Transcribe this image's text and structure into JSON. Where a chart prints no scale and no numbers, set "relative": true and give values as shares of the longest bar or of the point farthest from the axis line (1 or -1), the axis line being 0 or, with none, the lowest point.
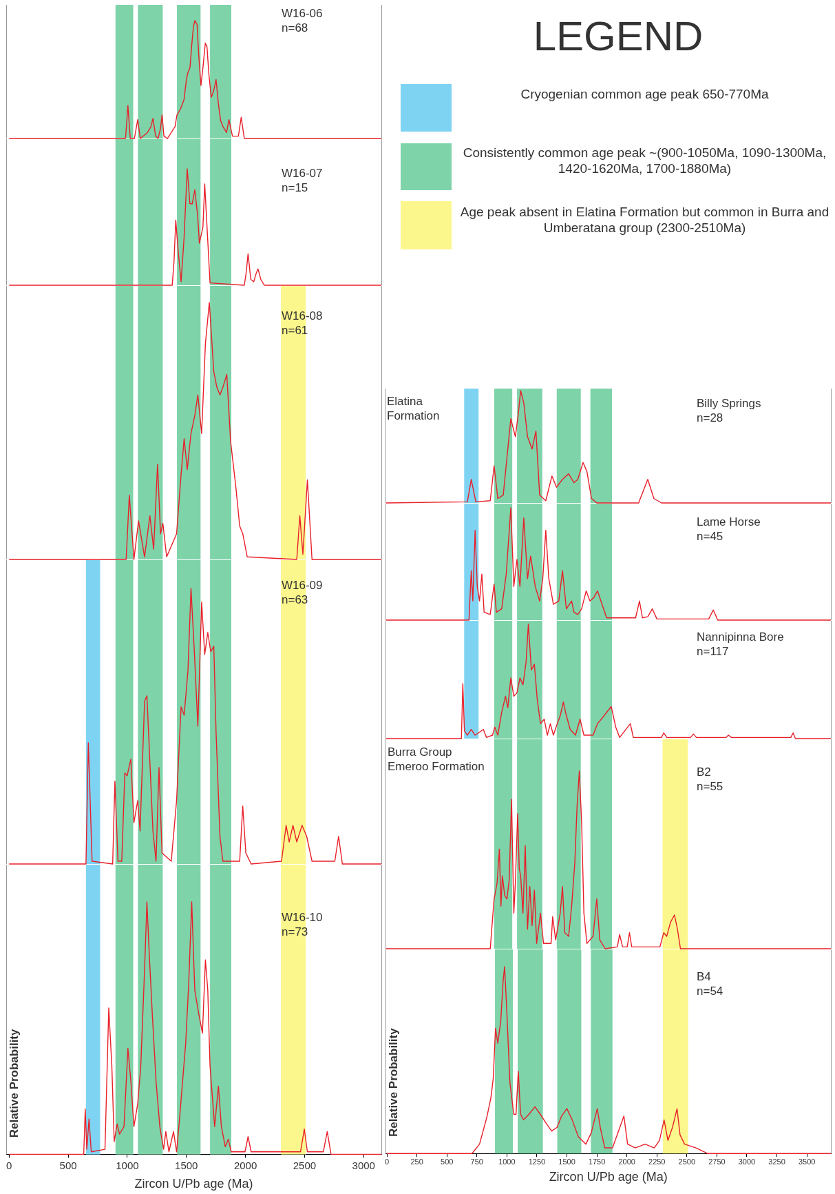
{
  "chart_data": [
    {
      "type": "line",
      "title": "W16-06",
      "subtitle": "n=68",
      "relative": true,
      "color": "#e8202a",
      "xlim": [
        -25,
        3150
      ],
      "tick_labels": false,
      "x": [
        0,
        950,
        985,
        1005,
        1025,
        1060,
        1088,
        1110,
        1170,
        1200,
        1217,
        1240,
        1260,
        1280,
        1294,
        1310,
        1340,
        1390,
        1404,
        1420,
        1450,
        1480,
        1500,
        1513,
        1530,
        1545,
        1560,
        1571,
        1590,
        1605,
        1623,
        1640,
        1660,
        1674,
        1690,
        1710,
        1730,
        1751,
        1770,
        1790,
        1810,
        1840,
        1860,
        1890,
        1940,
        1964,
        1990,
        3150
      ],
      "values": [
        0,
        0,
        0,
        0.28,
        0,
        0,
        0.16,
        0,
        0.05,
        0.1,
        0.17,
        0.02,
        0,
        0.08,
        0.2,
        0.02,
        0,
        0.08,
        0.1,
        0.2,
        0.25,
        0.33,
        0.5,
        0.56,
        0.6,
        0.79,
        0.95,
        1.0,
        0.97,
        0.7,
        0.45,
        0.6,
        0.81,
        0.78,
        0.55,
        0.35,
        0.4,
        0.5,
        0.3,
        0.15,
        0.1,
        0.05,
        0.16,
        0.02,
        0.02,
        0.18,
        0,
        0
      ],
      "bands": [
        {
          "axis": "x",
          "from": 900,
          "to": 1050,
          "color": "#7ed3a9"
        },
        {
          "axis": "x",
          "from": 1090,
          "to": 1300,
          "color": "#7ed3a9"
        },
        {
          "axis": "x",
          "from": 1420,
          "to": 1620,
          "color": "#7ed3a9"
        },
        {
          "axis": "x",
          "from": 1700,
          "to": 1880,
          "color": "#7ed3a9"
        }
      ]
    },
    {
      "type": "line",
      "title": "W16-07",
      "subtitle": "n=15",
      "relative": true,
      "color": "#e8202a",
      "xlim": [
        -25,
        3150
      ],
      "tick_labels": false,
      "x": [
        0,
        1380,
        1395,
        1410,
        1430,
        1455,
        1480,
        1507,
        1530,
        1550,
        1571,
        1595,
        1610,
        1640,
        1655,
        1680,
        1700,
        1990,
        2005,
        2022,
        2045,
        2070,
        2090,
        2106,
        2130,
        2160,
        3150
      ],
      "values": [
        0,
        0,
        0.2,
        0.56,
        0.3,
        0.03,
        0.4,
        1.0,
        0.7,
        0.7,
        0.82,
        0.6,
        0.36,
        0.5,
        0.87,
        0.4,
        0.02,
        0,
        0.1,
        0.27,
        0.05,
        0.03,
        0.1,
        0.14,
        0.05,
        0,
        0
      ],
      "bands": [
        {
          "axis": "x",
          "from": 900,
          "to": 1050,
          "color": "#7ed3a9"
        },
        {
          "axis": "x",
          "from": 1090,
          "to": 1300,
          "color": "#7ed3a9"
        },
        {
          "axis": "x",
          "from": 1420,
          "to": 1620,
          "color": "#7ed3a9"
        },
        {
          "axis": "x",
          "from": 1700,
          "to": 1880,
          "color": "#7ed3a9"
        }
      ]
    },
    {
      "type": "line",
      "title": "W16-08",
      "subtitle": "n=61",
      "relative": true,
      "color": "#e8202a",
      "xlim": [
        -25,
        3150
      ],
      "tick_labels": false,
      "x": [
        0,
        990,
        1017,
        1056,
        1095,
        1146,
        1191,
        1223,
        1256,
        1281,
        1301,
        1333,
        1417,
        1455,
        1481,
        1507,
        1539,
        1571,
        1597,
        1629,
        1661,
        1694,
        1732,
        1758,
        1784,
        1809,
        1842,
        1874,
        1919,
        1951,
        1977,
        2015,
        2434,
        2460,
        2486,
        2524,
        2563,
        3150
      ],
      "values": [
        0,
        0,
        0.25,
        0,
        0.15,
        0.01,
        0.17,
        0.04,
        0.37,
        0.1,
        0.14,
        0.01,
        0.1,
        0.33,
        0.47,
        0.35,
        0.49,
        0.56,
        0.64,
        0.49,
        0.84,
        1.0,
        0.73,
        0.67,
        0.64,
        0.67,
        0.72,
        0.46,
        0.28,
        0.13,
        0.1,
        0.01,
        0,
        0.17,
        0.02,
        0.31,
        0,
        0
      ],
      "bands": [
        {
          "axis": "x",
          "from": 900,
          "to": 1050,
          "color": "#7ed3a9"
        },
        {
          "axis": "x",
          "from": 1090,
          "to": 1300,
          "color": "#7ed3a9"
        },
        {
          "axis": "x",
          "from": 1420,
          "to": 1620,
          "color": "#7ed3a9"
        },
        {
          "axis": "x",
          "from": 1700,
          "to": 1880,
          "color": "#7ed3a9"
        },
        {
          "axis": "x",
          "from": 2300,
          "to": 2510,
          "color": "#fbf78c"
        }
      ]
    },
    {
      "type": "line",
      "title": "W16-09",
      "subtitle": "n=63",
      "relative": true,
      "color": "#e8202a",
      "xlim": [
        -25,
        3150
      ],
      "tick_labels": false,
      "x": [
        0,
        650,
        670,
        702,
        876,
        895,
        921,
        953,
        979,
        998,
        1030,
        1056,
        1088,
        1108,
        1146,
        1166,
        1191,
        1217,
        1243,
        1268,
        1294,
        1372,
        1417,
        1455,
        1481,
        1513,
        1539,
        1565,
        1597,
        1629,
        1655,
        1681,
        1706,
        1732,
        1751,
        1784,
        1809,
        1951,
        1977,
        2003,
        2048,
        2305,
        2344,
        2370,
        2402,
        2434,
        2479,
        2518,
        2563,
        2756,
        2788,
        2820,
        3150
      ],
      "values": [
        0,
        0,
        0.44,
        0.01,
        0,
        0.3,
        0.01,
        0.01,
        0.33,
        0.32,
        0.38,
        0.15,
        0.23,
        0.12,
        0.59,
        0.61,
        0.37,
        0.12,
        0.01,
        0.35,
        0.04,
        0.01,
        0.23,
        0.57,
        0.54,
        0.7,
        1.0,
        0.79,
        0.5,
        0.95,
        0.76,
        0.84,
        0.77,
        0.79,
        0.48,
        0.1,
        0.01,
        0.01,
        0.21,
        0.04,
        0,
        0.01,
        0.14,
        0.08,
        0.14,
        0.08,
        0.14,
        0.1,
        0.01,
        0.01,
        0.1,
        0,
        0
      ],
      "bands": [
        {
          "axis": "x",
          "from": 650,
          "to": 770,
          "color": "#7fd3f2"
        },
        {
          "axis": "x",
          "from": 900,
          "to": 1050,
          "color": "#7ed3a9"
        },
        {
          "axis": "x",
          "from": 1090,
          "to": 1300,
          "color": "#7ed3a9"
        },
        {
          "axis": "x",
          "from": 1420,
          "to": 1620,
          "color": "#7ed3a9"
        },
        {
          "axis": "x",
          "from": 1700,
          "to": 1880,
          "color": "#7ed3a9"
        },
        {
          "axis": "x",
          "from": 2300,
          "to": 2510,
          "color": "#fbf78c"
        }
      ]
    },
    {
      "type": "line",
      "title": "W16-10",
      "subtitle": "n=73",
      "relative": true,
      "color": "#e8202a",
      "xlim": [
        -25,
        3150
      ],
      "tick_labels": "x",
      "xlabel": "Zircon U/Pb age (Ma)",
      "ylabel": "Relative Probability",
      "xticks": [
        0,
        500,
        1000,
        1500,
        2000,
        2500,
        3000
      ],
      "x": [
        0,
        631,
        644,
        657,
        676,
        695,
        811,
        843,
        869,
        889,
        914,
        934,
        972,
        1005,
        1030,
        1056,
        1088,
        1114,
        1146,
        1166,
        1185,
        1211,
        1243,
        1275,
        1307,
        1326,
        1352,
        1391,
        1417,
        1442,
        1468,
        1494,
        1520,
        1545,
        1571,
        1603,
        1636,
        1661,
        1681,
        1700,
        1739,
        1771,
        1796,
        1829,
        1854,
        1880,
        1996,
        2022,
        2048,
        2466,
        2498,
        2524,
        2659,
        2692,
        2724,
        3150
      ],
      "values": [
        0,
        0,
        0.18,
        0.02,
        0.14,
        0.01,
        0.02,
        0.58,
        0.35,
        0.05,
        0.12,
        0.08,
        0.11,
        0.42,
        0.29,
        0.11,
        0.2,
        0.35,
        0.73,
        1.0,
        0.8,
        0.56,
        0.29,
        0.11,
        0.02,
        0.09,
        0.01,
        0.09,
        0.01,
        0.14,
        0.29,
        0.44,
        0.68,
        1.0,
        0.65,
        0.56,
        0.48,
        0.77,
        0.65,
        0.35,
        0.11,
        0.27,
        0.11,
        0.03,
        0.06,
        0.01,
        0.01,
        0.07,
        0.01,
        0.01,
        0.1,
        0.01,
        0.01,
        0.09,
        0,
        0
      ],
      "bands": [
        {
          "axis": "x",
          "from": 650,
          "to": 770,
          "color": "#7fd3f2"
        },
        {
          "axis": "x",
          "from": 900,
          "to": 1050,
          "color": "#7ed3a9"
        },
        {
          "axis": "x",
          "from": 1090,
          "to": 1300,
          "color": "#7ed3a9"
        },
        {
          "axis": "x",
          "from": 1420,
          "to": 1620,
          "color": "#7ed3a9"
        },
        {
          "axis": "x",
          "from": 1700,
          "to": 1880,
          "color": "#7ed3a9"
        },
        {
          "axis": "x",
          "from": 2300,
          "to": 2510,
          "color": "#fbf78c"
        }
      ]
    },
    {
      "type": "line",
      "title": "Billy Springs",
      "subtitle": "n=28",
      "annotations": [
        "Elatina Formation"
      ],
      "relative": true,
      "color": "#e8202a",
      "xlim": [
        -10,
        3700
      ],
      "tick_labels": false,
      "x": [
        0,
        677,
        709,
        747,
        867,
        899,
        930,
        975,
        1013,
        1038,
        1076,
        1101,
        1120,
        1146,
        1177,
        1215,
        1247,
        1278,
        1329,
        1380,
        1418,
        1468,
        1519,
        1563,
        1595,
        1639,
        1671,
        1709,
        1753,
        2101,
        2177,
        2228,
        2291,
        3700
      ],
      "values": [
        0,
        0.01,
        0.21,
        0.01,
        0.02,
        0.33,
        0.04,
        0.07,
        0.48,
        0.75,
        0.59,
        0.8,
        1.0,
        0.89,
        0.59,
        0.48,
        0.64,
        0.07,
        0.02,
        0.24,
        0.14,
        0.21,
        0.26,
        0.18,
        0.21,
        0.36,
        0.28,
        0.04,
        0,
        0,
        0.21,
        0.04,
        0,
        0
      ],
      "bands": [
        {
          "axis": "x",
          "from": 650,
          "to": 770,
          "color": "#7fd3f2"
        },
        {
          "axis": "x",
          "from": 900,
          "to": 1050,
          "color": "#7ed3a9"
        },
        {
          "axis": "x",
          "from": 1090,
          "to": 1300,
          "color": "#7ed3a9"
        },
        {
          "axis": "x",
          "from": 1420,
          "to": 1620,
          "color": "#7ed3a9"
        },
        {
          "axis": "x",
          "from": 1700,
          "to": 1880,
          "color": "#7ed3a9"
        }
      ]
    },
    {
      "type": "line",
      "title": "Lame Horse",
      "subtitle": "n=45",
      "relative": true,
      "color": "#e8202a",
      "xlim": [
        -10,
        3700
      ],
      "tick_labels": false,
      "x": [
        0,
        690,
        709,
        722,
        741,
        759,
        778,
        797,
        816,
        867,
        899,
        918,
        962,
        1000,
        1038,
        1063,
        1089,
        1114,
        1146,
        1177,
        1203,
        1241,
        1278,
        1304,
        1329,
        1354,
        1392,
        1437,
        1468,
        1500,
        1544,
        1563,
        1595,
        1627,
        1665,
        1696,
        1728,
        1759,
        1797,
        1835,
        2076,
        2108,
        2133,
        2177,
        2215,
        2253,
        2684,
        2722,
        2759,
        3700
      ],
      "values": [
        0,
        0,
        0.44,
        0.17,
        0.8,
        0.3,
        0.17,
        0.41,
        0.07,
        0.05,
        0.32,
        0.07,
        0.1,
        0.41,
        1.0,
        0.3,
        0.54,
        0.3,
        0.91,
        0.37,
        0.57,
        0.3,
        0.17,
        0.37,
        0.8,
        0.37,
        0.14,
        0.17,
        0.44,
        0.1,
        0.17,
        0.07,
        0.05,
        0.1,
        0.26,
        0.17,
        0.2,
        0.26,
        0.14,
        0.02,
        0.02,
        0.17,
        0.02,
        0.03,
        0.1,
        0.01,
        0.01,
        0.09,
        0,
        0
      ],
      "bands": [
        {
          "axis": "x",
          "from": 650,
          "to": 770,
          "color": "#7fd3f2"
        },
        {
          "axis": "x",
          "from": 900,
          "to": 1050,
          "color": "#7ed3a9"
        },
        {
          "axis": "x",
          "from": 1090,
          "to": 1300,
          "color": "#7ed3a9"
        },
        {
          "axis": "x",
          "from": 1420,
          "to": 1620,
          "color": "#7ed3a9"
        },
        {
          "axis": "x",
          "from": 1700,
          "to": 1880,
          "color": "#7ed3a9"
        }
      ]
    },
    {
      "type": "line",
      "title": "Nannipinna Bore",
      "subtitle": "n=117",
      "relative": true,
      "color": "#e8202a",
      "xlim": [
        -10,
        3700
      ],
      "tick_labels": false,
      "x": [
        0,
        627,
        639,
        652,
        677,
        709,
        741,
        810,
        835,
        886,
        905,
        930,
        962,
        994,
        1013,
        1038,
        1063,
        1089,
        1114,
        1139,
        1165,
        1184,
        1209,
        1234,
        1259,
        1285,
        1316,
        1342,
        1367,
        1392,
        1424,
        1449,
        1475,
        1500,
        1532,
        1576,
        1614,
        1646,
        1722,
        1759,
        1791,
        1873,
        1911,
        1943,
        2032,
        2057,
        2291,
        2310,
        2335,
        2532,
        2557,
        2582,
        2829,
        2848,
        2873,
        3367,
        3386,
        3405,
        3700
      ],
      "values": [
        0,
        0,
        0.48,
        0.07,
        0.03,
        0.08,
        0.03,
        0.08,
        0.01,
        0.03,
        0.1,
        0.03,
        0.23,
        0.37,
        0.27,
        0.53,
        0.37,
        0.4,
        0.53,
        0.47,
        0.67,
        1.0,
        0.6,
        0.65,
        0.33,
        0.13,
        0.17,
        0.03,
        0.13,
        0.03,
        0.13,
        0.2,
        0.32,
        0.2,
        0.08,
        0.03,
        0.17,
        0.03,
        0.03,
        0.13,
        0.17,
        0.28,
        0.1,
        0.01,
        0.13,
        0.01,
        0.01,
        0.05,
        0.01,
        0.01,
        0.04,
        0.01,
        0.01,
        0.03,
        0.01,
        0.01,
        0.05,
        0,
        0
      ],
      "bands": [
        {
          "axis": "x",
          "from": 650,
          "to": 770,
          "color": "#7fd3f2"
        },
        {
          "axis": "x",
          "from": 900,
          "to": 1050,
          "color": "#7ed3a9"
        },
        {
          "axis": "x",
          "from": 1090,
          "to": 1300,
          "color": "#7ed3a9"
        },
        {
          "axis": "x",
          "from": 1420,
          "to": 1620,
          "color": "#7ed3a9"
        },
        {
          "axis": "x",
          "from": 1700,
          "to": 1880,
          "color": "#7ed3a9"
        }
      ]
    },
    {
      "type": "line",
      "title": "B2",
      "subtitle": "n=55",
      "annotations": [
        "Burra Group Emeroo Formation"
      ],
      "relative": true,
      "color": "#e8202a",
      "xlim": [
        -10,
        3700
      ],
      "tick_labels": false,
      "x": [
        0,
        867,
        899,
        924,
        943,
        956,
        968,
        987,
        1006,
        1025,
        1044,
        1063,
        1076,
        1095,
        1108,
        1120,
        1139,
        1158,
        1177,
        1196,
        1215,
        1234,
        1253,
        1285,
        1310,
        1373,
        1386,
        1411,
        1449,
        1468,
        1487,
        1519,
        1544,
        1570,
        1589,
        1608,
        1627,
        1646,
        1671,
        1722,
        1753,
        1778,
        1823,
        1924,
        1943,
        1968,
        2006,
        2025,
        2044,
        2278,
        2310,
        2335,
        2367,
        2399,
        2424,
        2449,
        3700
      ],
      "values": [
        0,
        0,
        0.28,
        0.37,
        0.56,
        0.24,
        0.41,
        0.3,
        0.28,
        0.39,
        0.84,
        0.2,
        0.37,
        0.76,
        0.45,
        0.41,
        0.2,
        0.58,
        0.11,
        0.35,
        0.13,
        0.33,
        0.03,
        0.2,
        0.03,
        0.03,
        0.18,
        0.05,
        0.2,
        0.35,
        0.09,
        0.07,
        0.24,
        0.48,
        0.8,
        1.0,
        0.71,
        0.2,
        0.03,
        0.07,
        0.28,
        0.05,
        0,
        0.01,
        0.08,
        0.01,
        0.01,
        0.09,
        0.01,
        0.01,
        0.09,
        0.07,
        0.15,
        0.19,
        0.11,
        0,
        0
      ],
      "bands": [
        {
          "axis": "x",
          "from": 900,
          "to": 1050,
          "color": "#7ed3a9"
        },
        {
          "axis": "x",
          "from": 1090,
          "to": 1300,
          "color": "#7ed3a9"
        },
        {
          "axis": "x",
          "from": 1420,
          "to": 1620,
          "color": "#7ed3a9"
        },
        {
          "axis": "x",
          "from": 1700,
          "to": 1880,
          "color": "#7ed3a9"
        },
        {
          "axis": "x",
          "from": 2300,
          "to": 2510,
          "color": "#fbf78c"
        }
      ]
    },
    {
      "type": "line",
      "title": "B4",
      "subtitle": "n=54",
      "relative": true,
      "color": "#e8202a",
      "xlim": [
        -10,
        3700
      ],
      "tick_labels": "x",
      "xlabel": "Zircon U/Pb age (Ma)",
      "ylabel": "Relative Probability",
      "xticks": [
        0,
        250,
        500,
        750,
        1000,
        1250,
        1500,
        1750,
        2000,
        2250,
        2500,
        2750,
        3000,
        3250,
        3500
      ],
      "x": [
        0,
        709,
        772,
        835,
        867,
        886,
        905,
        924,
        949,
        968,
        981,
        1000,
        1025,
        1057,
        1076,
        1095,
        1114,
        1139,
        1184,
        1234,
        1278,
        1329,
        1373,
        1418,
        1456,
        1500,
        1544,
        1595,
        1658,
        1703,
        1753,
        1778,
        1816,
        1880,
        1975,
        2006,
        2070,
        2152,
        2228,
        2272,
        2310,
        2342,
        2380,
        2418,
        2443,
        2481,
        2576,
        2671,
        3700
      ],
      "values": [
        0,
        0,
        0.05,
        0.2,
        0.3,
        0.4,
        0.67,
        0.59,
        0.71,
        0.92,
        1.0,
        0.75,
        0.38,
        0.21,
        0.21,
        0.44,
        0.21,
        0.18,
        0.21,
        0.25,
        0.21,
        0.16,
        0.12,
        0.14,
        0.2,
        0.24,
        0.18,
        0.09,
        0.05,
        0.11,
        0.24,
        0.14,
        0.03,
        0.03,
        0.2,
        0.05,
        0.03,
        0.05,
        0.03,
        0.07,
        0.18,
        0.07,
        0.14,
        0.24,
        0.1,
        0.05,
        0.03,
        0,
        0
      ],
      "bands": [
        {
          "axis": "x",
          "from": 900,
          "to": 1050,
          "color": "#7ed3a9"
        },
        {
          "axis": "x",
          "from": 1090,
          "to": 1300,
          "color": "#7ed3a9"
        },
        {
          "axis": "x",
          "from": 1420,
          "to": 1620,
          "color": "#7ed3a9"
        },
        {
          "axis": "x",
          "from": 1700,
          "to": 1880,
          "color": "#7ed3a9"
        },
        {
          "axis": "x",
          "from": 2300,
          "to": 2510,
          "color": "#fbf78c"
        }
      ]
    },
    {
      "type": "other",
      "title": "LEGEND",
      "colors": [
        "#7fd3f2",
        "#7ed3a9",
        "#fbf78c"
      ],
      "annotations": [
        "Cryogenian common age peak 650-770Ma",
        "Consistently common age peak ~(900-1050Ma, 1090-1300Ma, 1420-1620Ma, 1700-1880Ma)",
        "Age peak absent in Elatina Formation but common in Burra and Umberatana group (2300-2510Ma)"
      ]
    }
  ]
}
